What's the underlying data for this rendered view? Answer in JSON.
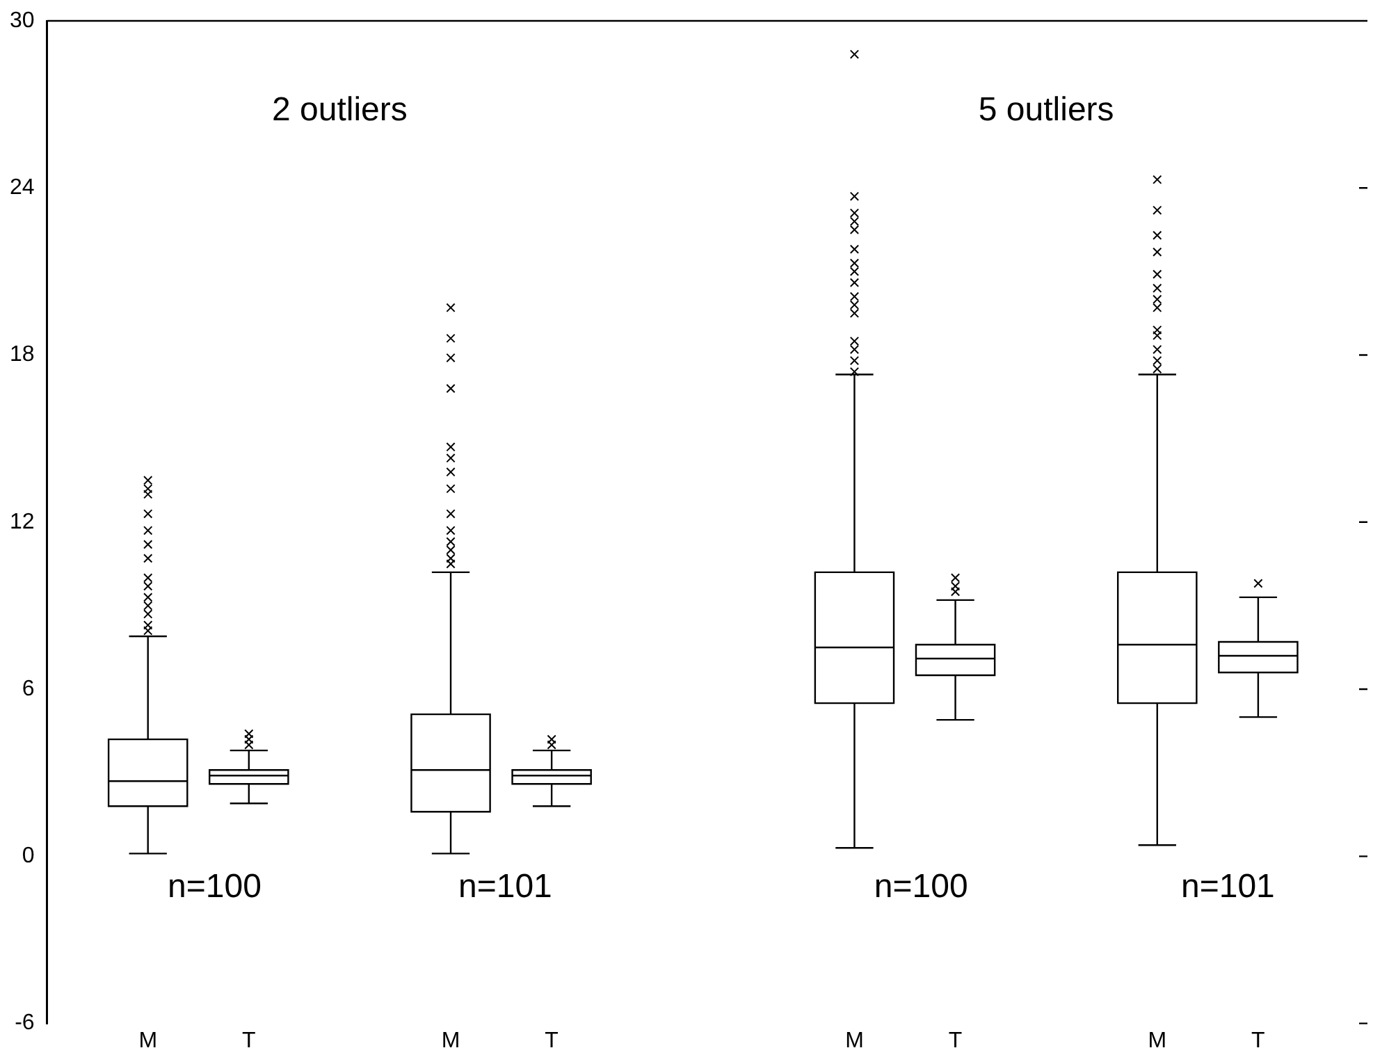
{
  "chart_data": {
    "type": "box",
    "categories": [
      "M",
      "T",
      null,
      "M",
      "T",
      null,
      null,
      "M",
      "T",
      null,
      "M",
      "T"
    ],
    "boxes": [
      {
        "low": 0.1,
        "q1": 1.8,
        "median": 2.7,
        "q3": 4.2,
        "high": 7.9,
        "outliers": [
          13.5,
          13.2,
          13.0,
          12.3,
          11.7,
          11.2,
          10.7,
          10.0,
          9.7,
          9.3,
          9.0,
          8.7,
          8.3,
          8.1
        ]
      },
      {
        "low": 1.9,
        "q1": 2.6,
        "median": 2.9,
        "q3": 3.1,
        "high": 3.8,
        "outliers": [
          4.4,
          4.2,
          4.0
        ]
      },
      null,
      {
        "low": 0.1,
        "q1": 1.6,
        "median": 3.1,
        "q3": 5.1,
        "high": 10.2,
        "outliers": [
          19.7,
          18.6,
          17.9,
          16.8,
          14.7,
          14.3,
          13.8,
          13.2,
          12.3,
          11.7,
          11.3,
          11.0,
          10.7,
          10.5
        ]
      },
      {
        "low": 1.8,
        "q1": 2.6,
        "median": 2.9,
        "q3": 3.1,
        "high": 3.8,
        "outliers": [
          4.2,
          4.0
        ]
      },
      null,
      null,
      {
        "low": 0.3,
        "q1": 5.5,
        "median": 7.5,
        "q3": 10.2,
        "high": 17.3,
        "outliers": [
          28.8,
          23.7,
          23.1,
          22.8,
          22.5,
          21.8,
          21.3,
          21.0,
          20.6,
          20.1,
          19.8,
          19.5,
          18.5,
          18.2,
          17.8,
          17.4
        ]
      },
      {
        "low": 4.9,
        "q1": 6.5,
        "median": 7.1,
        "q3": 7.6,
        "high": 9.2,
        "outliers": [
          10.0,
          9.7,
          9.5
        ]
      },
      null,
      {
        "low": 0.4,
        "q1": 5.5,
        "median": 7.6,
        "q3": 10.2,
        "high": 17.3,
        "outliers": [
          24.3,
          23.2,
          22.3,
          21.7,
          20.9,
          20.4,
          20.0,
          19.7,
          18.9,
          18.7,
          18.2,
          17.8,
          17.5
        ]
      },
      {
        "low": 5.0,
        "q1": 6.6,
        "median": 7.2,
        "q3": 7.7,
        "high": 9.3,
        "outliers": [
          9.8
        ]
      }
    ],
    "color": "#000000",
    "marker": "cross",
    "ylim": [
      -6,
      30
    ],
    "yticks": [
      -6,
      0,
      6,
      12,
      18,
      24,
      30
    ],
    "grid": false,
    "legend": false,
    "annotations": [
      "2 outliers",
      "5 outliers",
      "n=100",
      "n=101",
      "n=100",
      "n=101"
    ]
  }
}
